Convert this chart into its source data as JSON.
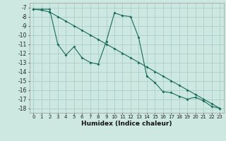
{
  "xlabel": "Humidex (Indice chaleur)",
  "background_color": "#cce8e0",
  "grid_color": "#aacfc8",
  "line_color": "#1a6b5a",
  "xlim": [
    -0.5,
    23.5
  ],
  "ylim": [
    -18.5,
    -6.5
  ],
  "yticks": [
    -7,
    -8,
    -9,
    -10,
    -11,
    -12,
    -13,
    -14,
    -15,
    -16,
    -17,
    -18
  ],
  "xticks": [
    0,
    1,
    2,
    3,
    4,
    5,
    6,
    7,
    8,
    9,
    10,
    11,
    12,
    13,
    14,
    15,
    16,
    17,
    18,
    19,
    20,
    21,
    22,
    23
  ],
  "line1_x": [
    0,
    1,
    2,
    3,
    4,
    5,
    6,
    7,
    8,
    9,
    10,
    11,
    12,
    13,
    14,
    15,
    16,
    17,
    18,
    19,
    20,
    21,
    22,
    23
  ],
  "line1_y": [
    -7.2,
    -7.2,
    -7.2,
    -11.0,
    -12.2,
    -11.3,
    -12.5,
    -13.0,
    -13.2,
    -10.7,
    -7.6,
    -7.9,
    -8.0,
    -10.3,
    -14.5,
    -15.2,
    -16.2,
    -16.3,
    -16.7,
    -17.0,
    -16.8,
    -17.2,
    -17.8,
    -18.0
  ],
  "line2_x": [
    0,
    1,
    2,
    3,
    4,
    5,
    6,
    7,
    8,
    9,
    10,
    11,
    12,
    13,
    14,
    15,
    16,
    17,
    18,
    19,
    20,
    21,
    22,
    23
  ],
  "line2_y": [
    -7.2,
    -7.3,
    -7.5,
    -8.0,
    -8.5,
    -9.0,
    -9.5,
    -10.0,
    -10.5,
    -11.0,
    -11.5,
    -12.0,
    -12.5,
    -13.0,
    -13.5,
    -14.0,
    -14.5,
    -15.0,
    -15.5,
    -16.0,
    -16.5,
    -17.0,
    -17.5,
    -18.0
  ],
  "tick_fontsize": 5,
  "xlabel_fontsize": 6.5
}
